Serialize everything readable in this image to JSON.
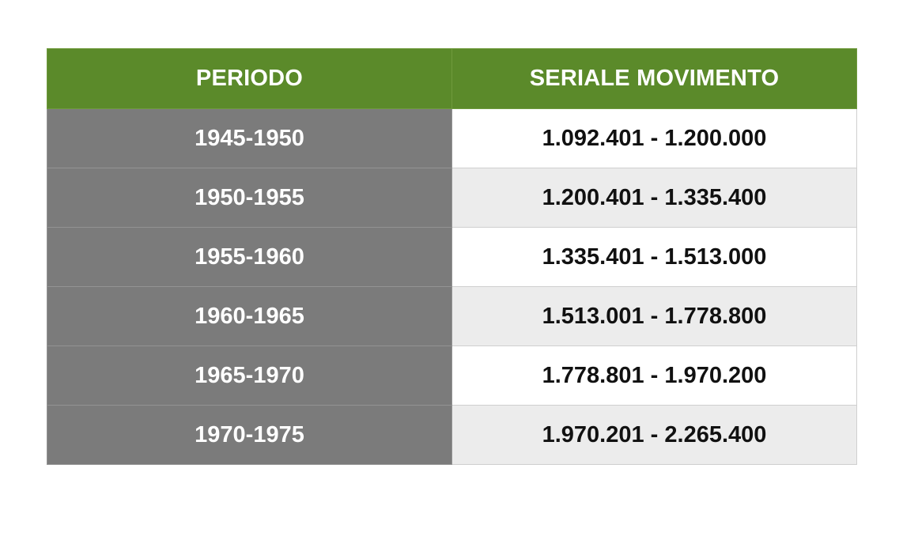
{
  "table": {
    "headers": {
      "periodo": "PERIODO",
      "seriale": "SERIALE MOVIMENTO"
    },
    "rows": [
      {
        "periodo": "1945-1950",
        "seriale": "1.092.401 - 1.200.000"
      },
      {
        "periodo": "1950-1955",
        "seriale": "1.200.401 - 1.335.400"
      },
      {
        "periodo": "1955-1960",
        "seriale": "1.335.401 - 1.513.000"
      },
      {
        "periodo": "1960-1965",
        "seriale": "1.513.001 - 1.778.800"
      },
      {
        "periodo": "1965-1970",
        "seriale": "1.778.801 - 1.970.200"
      },
      {
        "periodo": "1970-1975",
        "seriale": "1.970.201 - 2.265.400"
      }
    ]
  },
  "colors": {
    "header_bg": "#5b8a2a",
    "period_bg": "#7b7b7b",
    "row_alt_bg": "#ececec"
  }
}
